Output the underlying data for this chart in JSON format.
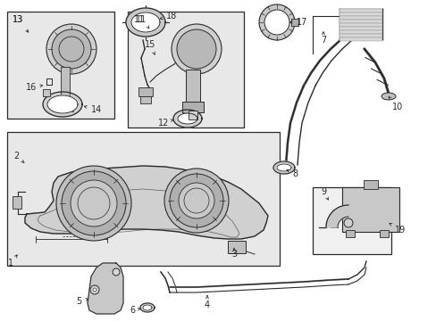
{
  "bg_color": "#ffffff",
  "line_color": "#2a2a2a",
  "box_fill": "#e8e8e8",
  "fig_width": 4.89,
  "fig_height": 3.6,
  "dpi": 100
}
